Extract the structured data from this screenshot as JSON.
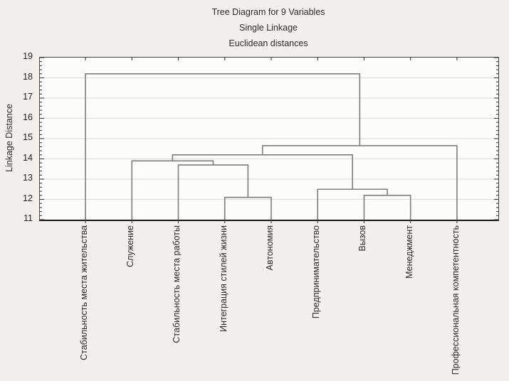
{
  "figure": {
    "title": "Tree Diagram for 9 Variables",
    "method": "Single Linkage",
    "distance": "Euclidean distances"
  },
  "chart_data": {
    "type": "dendrogram",
    "orientation": "leaves-bottom",
    "title": "Tree Diagram for 9 Variables",
    "method": "Single Linkage",
    "distance": "Euclidean distances",
    "ylabel": "Linkage Distance",
    "ylim": [
      11,
      19
    ],
    "y_major_ticks": [
      19,
      18,
      17,
      16,
      15,
      14,
      13,
      12,
      11
    ],
    "y_minor_step": 0.2,
    "grid": "horizontal-major-lines",
    "leaves": [
      "Стабильность места жительства",
      "Служение",
      "Стабильность места работы",
      "Интеграция стилей жизни",
      "Автономия",
      "Предпринимательство",
      "Вызов",
      "Менеджмент",
      "Профессиональная компетентность"
    ],
    "merges": [
      {
        "cluster": "M1",
        "left": "Интеграция стилей жизни",
        "right": "Автономия",
        "linkage_distance": 12.1
      },
      {
        "cluster": "M2",
        "left": "Вызов",
        "right": "Менеджмент",
        "linkage_distance": 12.2
      },
      {
        "cluster": "M3",
        "left": "Предпринимательство",
        "right": "M2",
        "linkage_distance": 12.5
      },
      {
        "cluster": "M4",
        "left": "Стабильность места работы",
        "right": "M1",
        "linkage_distance": 13.7
      },
      {
        "cluster": "M5",
        "left": "Служение",
        "right": "M4",
        "linkage_distance": 13.9
      },
      {
        "cluster": "M6",
        "left": "M5",
        "right": "M3",
        "linkage_distance": 14.2
      },
      {
        "cluster": "M7",
        "left": "M6",
        "right": "Профессиональная компетентность",
        "linkage_distance": 14.65
      },
      {
        "cluster": "M8",
        "left": "Стабильность места жительства",
        "right": "M7",
        "linkage_distance": 18.2
      }
    ]
  },
  "colors": {
    "page_background": "#f1f0ec",
    "plot_background": "#fcfcfa",
    "frame": "#454545",
    "baseline": "#141414",
    "gridline": "#deddd9",
    "link_line": "#7e7e7e",
    "tick": "#3a3a3a",
    "text": "#2b2b2b"
  }
}
